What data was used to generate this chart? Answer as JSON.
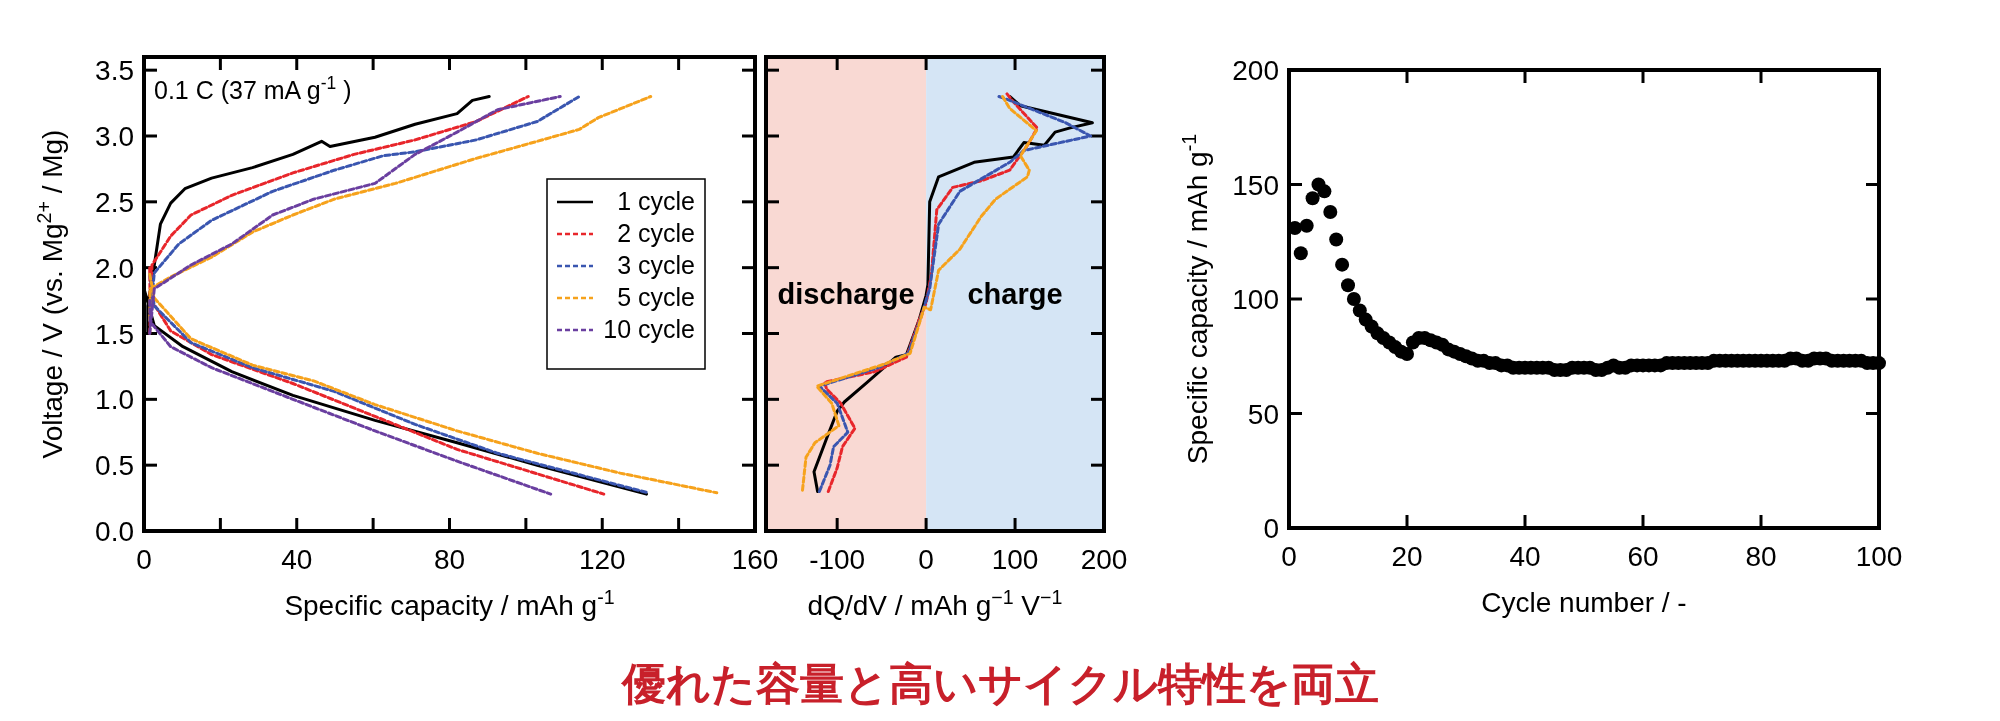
{
  "chart_data": [
    {
      "type": "line",
      "xlabel": "Specific capacity / mAh g$^{-1}$",
      "ylabel": "Voltage / V (vs. Mg$^{2+}$ / Mg)",
      "xlim": [
        0,
        160
      ],
      "ylim": [
        0,
        3.6
      ],
      "xticks": [
        0,
        {
          "value": 20,
          "label": null
        },
        40,
        {
          "value": 60,
          "label": null
        },
        80,
        {
          "value": 100,
          "label": null
        },
        120,
        {
          "value": 140,
          "label": null
        },
        160
      ],
      "yticks": [
        {
          "value": 0,
          "label": "0.0"
        },
        {
          "value": 0.5,
          "label": "0.5"
        },
        {
          "value": 1,
          "label": "1.0"
        },
        {
          "value": 1.5,
          "label": "1.5"
        },
        {
          "value": 2,
          "label": "2.0"
        },
        {
          "value": 2.5,
          "label": "2.5"
        },
        {
          "value": 3,
          "label": "3.0"
        },
        {
          "value": 3.5,
          "label": "3.5"
        }
      ],
      "legend": "right",
      "annotations": [
        "0.1 C (37 mA g$^{-1}$ )"
      ],
      "series": [
        {
          "name": "1 cycle",
          "color": "#000000",
          "line_style": "solid",
          "x": [
            0,
            2.7,
            10.2,
            23,
            39,
            60.5,
            82,
            103,
            131.6,
            null,
            1,
            1,
            2.7,
            4.3,
            7,
            10.7,
            17.7,
            28.4,
            39,
            46.5,
            48.7,
            60.5,
            71,
            82,
            86,
            90.4
          ],
          "values": [
            1.84,
            1.56,
            1.4,
            1.21,
            1.03,
            0.84,
            0.67,
            0.5,
            0.28,
            null,
            1.5,
            1.71,
            2.02,
            2.33,
            2.49,
            2.6,
            2.68,
            2.76,
            2.86,
            2.96,
            2.92,
            2.99,
            3.09,
            3.17,
            3.27,
            3.3
          ]
        },
        {
          "name": "2 cycle",
          "color": "#e8262b",
          "line_style": "dashed",
          "x": [
            1.5,
            1.6,
            7,
            17.7,
            39,
            60.5,
            82,
            120.4,
            null,
            1.5,
            2.1,
            7,
            12.3,
            23,
            39,
            55,
            71,
            87,
            100.6
          ],
          "values": [
            2.0,
            1.77,
            1.52,
            1.34,
            1.12,
            0.87,
            0.62,
            0.28,
            null,
            1.5,
            2.02,
            2.24,
            2.4,
            2.55,
            2.72,
            2.86,
            2.97,
            3.11,
            3.3
          ]
        },
        {
          "name": "3 cycle",
          "color": "#3a56b0",
          "line_style": "dashed",
          "x": [
            1.5,
            2.7,
            12.3,
            28.4,
            49.8,
            71,
            92.6,
            132,
            null,
            1.5,
            2.7,
            9.1,
            17.7,
            33.7,
            49.8,
            62.6,
            71,
            87,
            103,
            114
          ],
          "values": [
            1.95,
            1.71,
            1.43,
            1.24,
            1.06,
            0.81,
            0.59,
            0.29,
            null,
            1.6,
            1.96,
            2.18,
            2.36,
            2.58,
            2.74,
            2.85,
            2.88,
            2.97,
            3.11,
            3.3
          ]
        },
        {
          "name": "5 cycle",
          "color": "#f6a21c",
          "line_style": "dashed",
          "x": [
            1.5,
            2.7,
            12.3,
            28.4,
            44.4,
            60.5,
            82,
            103,
            124.7,
            150,
            null,
            1.5,
            1.6,
            7,
            17.7,
            28.4,
            39,
            49.8,
            65.8,
            87,
            103,
            114,
            119,
            132.7
          ],
          "values": [
            1.95,
            1.77,
            1.46,
            1.26,
            1.14,
            0.96,
            0.76,
            0.59,
            0.44,
            0.29,
            null,
            1.6,
            1.84,
            1.93,
            2.08,
            2.27,
            2.4,
            2.52,
            2.64,
            2.83,
            2.96,
            3.05,
            3.14,
            3.3
          ]
        },
        {
          "name": "10 cycle",
          "color": "#6a3fa0",
          "line_style": "dashed",
          "x": [
            1.5,
            1.6,
            7,
            17.7,
            39,
            60.5,
            82,
            106.5,
            null,
            1.5,
            2.7,
            12.3,
            23,
            33.7,
            44.4,
            60.5,
            71,
            82,
            92.6,
            109
          ],
          "values": [
            1.75,
            1.59,
            1.4,
            1.24,
            1.0,
            0.76,
            0.53,
            0.28,
            null,
            1.5,
            1.84,
            2.02,
            2.18,
            2.4,
            2.52,
            2.64,
            2.86,
            3.03,
            3.2,
            3.3
          ]
        }
      ]
    },
    {
      "type": "line",
      "xlabel": "dQ/dV / mAh g$^{−1}$ V$^{−1}$",
      "xlim": [
        -180,
        200
      ],
      "ylim": [
        0,
        3.6
      ],
      "xticks": [
        -100,
        0,
        100,
        200
      ],
      "yticks": [
        {
          "value": 0,
          "label": null
        },
        {
          "value": 0.5,
          "label": null
        },
        {
          "value": 1,
          "label": null
        },
        {
          "value": 1.5,
          "label": null
        },
        {
          "value": 2,
          "label": null
        },
        {
          "value": 2.5,
          "label": null
        },
        {
          "value": 3,
          "label": null
        },
        {
          "value": 3.5,
          "label": null
        }
      ],
      "tick_labels": "x",
      "annotations": [
        "優れた容量と高いサイクル特性を両立"
      ],
      "bands": [
        {
          "axis": "x",
          "from": -180,
          "to": 0,
          "label": "discharge",
          "color": "#f9d9d3"
        },
        {
          "axis": "x",
          "from": 0,
          "to": 200,
          "label": "charge",
          "color": "#d5e5f5"
        }
      ],
      "series": [
        {
          "color": "#000000",
          "line_style": "solid",
          "x": [
            -122,
            -126,
            -112,
            -100,
            -92,
            -66,
            -34,
            -22,
            -8,
            0,
            2,
            4,
            14,
            54,
            98,
            110,
            133,
            145,
            161,
            187,
            137,
            106,
            94
          ],
          "values": [
            0.3,
            0.45,
            0.7,
            0.91,
            0.98,
            1.13,
            1.32,
            1.34,
            1.6,
            1.79,
            1.87,
            2.5,
            2.69,
            2.8,
            2.84,
            2.95,
            2.93,
            3.03,
            3.06,
            3.1,
            3.18,
            3.23,
            3.3
          ]
        },
        {
          "color": "#e8262b",
          "line_style": "dashed",
          "x": [
            -110,
            -100,
            -94,
            -80,
            -96,
            -112,
            -114,
            -58,
            -22,
            -8,
            0,
            6,
            12,
            30,
            62,
            94,
            114,
            125,
            98,
            91
          ],
          "values": [
            0.3,
            0.48,
            0.64,
            0.78,
            0.97,
            1.08,
            1.13,
            1.21,
            1.32,
            1.6,
            1.73,
            1.95,
            2.44,
            2.61,
            2.66,
            2.74,
            2.93,
            3.06,
            3.26,
            3.32
          ]
        },
        {
          "color": "#3a56b0",
          "line_style": "dashed",
          "x": [
            -120,
            -108,
            -104,
            -88,
            -100,
            -120,
            -54,
            -20,
            -6,
            4,
            14,
            38,
            94,
            110,
            185,
            157,
            94,
            82
          ],
          "values": [
            0.3,
            0.5,
            0.64,
            0.75,
            0.97,
            1.1,
            1.24,
            1.35,
            1.62,
            1.84,
            2.33,
            2.58,
            2.8,
            2.89,
            3.0,
            3.1,
            3.27,
            3.3
          ]
        },
        {
          "color": "#f6a21c",
          "line_style": "dashed",
          "x": [
            -139,
            -135,
            -125,
            -98,
            -106,
            -123,
            -46,
            -18,
            -2,
            5,
            14,
            38,
            62,
            78,
            114,
            116,
            106,
            124,
            94,
            86
          ],
          "values": [
            0.31,
            0.56,
            0.67,
            0.8,
            0.97,
            1.1,
            1.27,
            1.35,
            1.7,
            1.68,
            1.98,
            2.14,
            2.39,
            2.52,
            2.69,
            2.74,
            2.85,
            3.04,
            3.21,
            3.3
          ]
        }
      ]
    },
    {
      "type": "scatter",
      "xlabel": "Cycle number / -",
      "ylabel": "Specific capacity / mAh g$^{-1}$",
      "xlim": [
        0,
        100
      ],
      "ylim": [
        0,
        200
      ],
      "xticks": [
        0,
        20,
        40,
        60,
        80,
        100
      ],
      "yticks": [
        0,
        50,
        100,
        150,
        200
      ],
      "marker": "circle",
      "series": [
        {
          "color": "#000000",
          "x": [
            1,
            2,
            3,
            4,
            5,
            6,
            7,
            8,
            9,
            10,
            11,
            12,
            13,
            14,
            15,
            16,
            17,
            18,
            19,
            20,
            21,
            22,
            23,
            24,
            25,
            26,
            27,
            28,
            29,
            30,
            31,
            32,
            33,
            34,
            35,
            36,
            37,
            38,
            39,
            40,
            41,
            42,
            43,
            44,
            45,
            46,
            47,
            48,
            49,
            50,
            51,
            52,
            53,
            54,
            55,
            56,
            57,
            58,
            59,
            60,
            61,
            62,
            63,
            64,
            65,
            66,
            67,
            68,
            69,
            70,
            71,
            72,
            73,
            74,
            75,
            76,
            77,
            78,
            79,
            80,
            81,
            82,
            83,
            84,
            85,
            86,
            87,
            88,
            89,
            90,
            91,
            92,
            93,
            94,
            95,
            96,
            97,
            98,
            99,
            100
          ],
          "values": [
            131,
            120,
            132,
            144,
            150,
            147,
            138,
            126,
            115,
            106,
            100,
            95,
            91,
            88,
            85,
            83,
            81,
            79,
            77,
            76,
            81,
            83,
            83,
            82,
            81,
            80,
            78,
            77,
            76,
            75,
            74,
            73,
            73,
            72,
            72,
            71,
            71,
            70,
            70,
            70,
            70,
            70,
            70,
            70,
            69,
            69,
            69,
            70,
            70,
            70,
            70,
            69,
            69,
            70,
            71,
            70,
            70,
            71,
            71,
            71,
            71,
            71,
            71,
            72,
            72,
            72,
            72,
            72,
            72,
            72,
            72,
            73,
            73,
            73,
            73,
            73,
            73,
            73,
            73,
            73,
            73,
            73,
            73,
            73,
            74,
            74,
            73,
            73,
            74,
            74,
            74,
            73,
            73,
            73,
            73,
            73,
            73,
            72,
            72,
            72
          ]
        }
      ]
    }
  ]
}
